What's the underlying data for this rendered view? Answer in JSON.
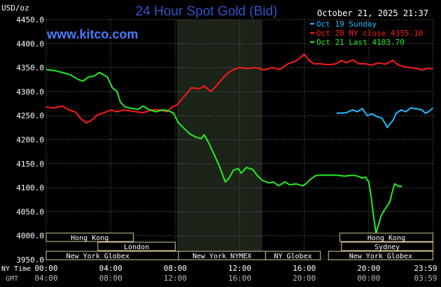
{
  "header": {
    "title": "24 Hour Spot Gold (Bid)",
    "timestamp": "October 21, 2025 21:37",
    "unit_label": "USD/oz",
    "watermark": "www.kitco.com"
  },
  "colors": {
    "background": "#000000",
    "title": "#2f55c7",
    "watermark": "#4a7cff",
    "axis_text": "#ffffff",
    "gridline": "#6a6a6a",
    "shaded_band": "#1c2318",
    "series_oct19": "#22bbff",
    "series_oct20": "#ff1a1a",
    "series_oct21": "#22ee22",
    "session_border": "#d8c79a"
  },
  "sessions": [
    {
      "label": "Hong Kong",
      "row": 1
    },
    {
      "label": "London",
      "row": 2
    },
    {
      "label": "New York Globex",
      "row": 3
    },
    {
      "label": "New York NYMEX",
      "row": 3
    },
    {
      "label": "NY Globex",
      "row": 3
    },
    {
      "label": "Hong Kong",
      "row": 1
    },
    {
      "label": "Sydney",
      "row": 2
    },
    {
      "label": "New York Globex",
      "row": 3
    }
  ],
  "footer": {
    "ny_time_label": "NY Time",
    "gmt_label": "GMT",
    "ny_ticks": [
      "00:00",
      "04:00",
      "08:00",
      "12:00",
      "16:00",
      "20:00",
      "23:59"
    ],
    "gmt_ticks": [
      "04:00",
      "08:00",
      "12:00",
      "16:00",
      "20:00",
      "00:00",
      "03:59"
    ]
  },
  "chart_data": {
    "type": "line",
    "title": "24 Hour Spot Gold (Bid)",
    "ylabel": "USD/oz",
    "xlabel": "NY Time",
    "xlim": [
      0,
      24
    ],
    "ylim": [
      3950,
      4450
    ],
    "y_ticks": [
      "4450.0",
      "4400.0",
      "4350.0",
      "4300.0",
      "4250.0",
      "4200.0",
      "4150.0",
      "4100.0",
      "4050.0",
      "4000.0",
      "3950.0"
    ],
    "grid": true,
    "legend_position": "top-right",
    "shaded_region_hours": [
      8.1,
      13.4
    ],
    "series": [
      {
        "name": "Oct 19 Sunday",
        "legend": "Oct 19 Sunday",
        "points": [
          [
            18.0,
            4255
          ],
          [
            18.6,
            4256
          ],
          [
            19.0,
            4262
          ],
          [
            19.3,
            4258
          ],
          [
            19.6,
            4265
          ],
          [
            19.9,
            4250
          ],
          [
            20.2,
            4254
          ],
          [
            20.5,
            4248
          ],
          [
            20.8,
            4245
          ],
          [
            21.0,
            4235
          ],
          [
            21.15,
            4225
          ],
          [
            21.3,
            4232
          ],
          [
            21.5,
            4240
          ],
          [
            21.7,
            4255
          ],
          [
            22.0,
            4262
          ],
          [
            22.3,
            4258
          ],
          [
            22.6,
            4266
          ],
          [
            23.0,
            4264
          ],
          [
            23.3,
            4262
          ],
          [
            23.5,
            4255
          ],
          [
            23.7,
            4258
          ],
          [
            23.98,
            4266
          ]
        ]
      },
      {
        "name": "Oct 20 NY close 4355.10",
        "legend": "Oct 20 NY close 4355.10",
        "points": [
          [
            0.0,
            4268
          ],
          [
            0.5,
            4266
          ],
          [
            1.0,
            4270
          ],
          [
            1.4,
            4262
          ],
          [
            1.8,
            4258
          ],
          [
            2.2,
            4242
          ],
          [
            2.5,
            4235
          ],
          [
            2.8,
            4240
          ],
          [
            3.2,
            4252
          ],
          [
            3.6,
            4256
          ],
          [
            4.0,
            4262
          ],
          [
            4.4,
            4258
          ],
          [
            4.8,
            4262
          ],
          [
            5.2,
            4260
          ],
          [
            5.6,
            4258
          ],
          [
            6.0,
            4256
          ],
          [
            6.5,
            4262
          ],
          [
            7.0,
            4262
          ],
          [
            7.5,
            4258
          ],
          [
            7.8,
            4268
          ],
          [
            8.1,
            4272
          ],
          [
            8.5,
            4288
          ],
          [
            9.0,
            4308
          ],
          [
            9.5,
            4306
          ],
          [
            9.8,
            4312
          ],
          [
            10.2,
            4300
          ],
          [
            10.5,
            4310
          ],
          [
            10.8,
            4322
          ],
          [
            11.0,
            4330
          ],
          [
            11.3,
            4340
          ],
          [
            11.6,
            4346
          ],
          [
            12.0,
            4350
          ],
          [
            12.5,
            4348
          ],
          [
            13.0,
            4350
          ],
          [
            13.5,
            4345
          ],
          [
            14.0,
            4350
          ],
          [
            14.5,
            4346
          ],
          [
            15.0,
            4358
          ],
          [
            15.5,
            4364
          ],
          [
            15.8,
            4372
          ],
          [
            16.0,
            4378
          ],
          [
            16.3,
            4365
          ],
          [
            16.6,
            4358
          ],
          [
            17.0,
            4358
          ],
          [
            17.5,
            4356
          ],
          [
            18.0,
            4358
          ],
          [
            18.3,
            4365
          ],
          [
            18.6,
            4360
          ],
          [
            19.0,
            4366
          ],
          [
            19.4,
            4358
          ],
          [
            19.8,
            4358
          ],
          [
            20.2,
            4355
          ],
          [
            20.6,
            4360
          ],
          [
            21.0,
            4357
          ],
          [
            21.5,
            4365
          ],
          [
            21.8,
            4356
          ],
          [
            22.2,
            4352
          ],
          [
            22.6,
            4350
          ],
          [
            23.0,
            4348
          ],
          [
            23.3,
            4345
          ],
          [
            23.6,
            4348
          ],
          [
            23.98,
            4348
          ]
        ]
      },
      {
        "name": "Oct 21 Last 4103.70",
        "legend": "Oct 21 Last 4103.70",
        "points": [
          [
            0.0,
            4346
          ],
          [
            0.5,
            4344
          ],
          [
            1.0,
            4340
          ],
          [
            1.5,
            4335
          ],
          [
            2.0,
            4325
          ],
          [
            2.3,
            4322
          ],
          [
            2.6,
            4330
          ],
          [
            3.0,
            4333
          ],
          [
            3.3,
            4340
          ],
          [
            3.5,
            4336
          ],
          [
            3.8,
            4330
          ],
          [
            4.1,
            4308
          ],
          [
            4.4,
            4300
          ],
          [
            4.6,
            4278
          ],
          [
            4.9,
            4268
          ],
          [
            5.3,
            4265
          ],
          [
            5.7,
            4263
          ],
          [
            6.0,
            4270
          ],
          [
            6.4,
            4262
          ],
          [
            6.8,
            4258
          ],
          [
            7.2,
            4262
          ],
          [
            7.6,
            4260
          ],
          [
            7.9,
            4255
          ],
          [
            8.2,
            4235
          ],
          [
            8.5,
            4225
          ],
          [
            8.8,
            4215
          ],
          [
            9.0,
            4210
          ],
          [
            9.3,
            4205
          ],
          [
            9.6,
            4202
          ],
          [
            9.8,
            4210
          ],
          [
            10.1,
            4192
          ],
          [
            10.4,
            4170
          ],
          [
            10.7,
            4148
          ],
          [
            10.9,
            4130
          ],
          [
            11.1,
            4112
          ],
          [
            11.3,
            4118
          ],
          [
            11.6,
            4136
          ],
          [
            11.9,
            4140
          ],
          [
            12.1,
            4130
          ],
          [
            12.4,
            4142
          ],
          [
            12.8,
            4138
          ],
          [
            13.1,
            4125
          ],
          [
            13.4,
            4115
          ],
          [
            13.8,
            4110
          ],
          [
            14.1,
            4112
          ],
          [
            14.4,
            4104
          ],
          [
            14.8,
            4112
          ],
          [
            15.1,
            4106
          ],
          [
            15.5,
            4108
          ],
          [
            15.9,
            4104
          ],
          [
            16.1,
            4108
          ],
          [
            16.4,
            4118
          ],
          [
            16.7,
            4125
          ],
          [
            17.0,
            4126
          ],
          [
            17.5,
            4126
          ],
          [
            18.0,
            4126
          ],
          [
            18.5,
            4124
          ],
          [
            19.0,
            4126
          ],
          [
            19.3,
            4124
          ],
          [
            19.6,
            4120
          ],
          [
            19.8,
            4122
          ],
          [
            20.0,
            4112
          ],
          [
            20.15,
            4080
          ],
          [
            20.3,
            4040
          ],
          [
            20.45,
            4005
          ],
          [
            20.6,
            4022
          ],
          [
            20.75,
            4040
          ],
          [
            20.9,
            4050
          ],
          [
            21.1,
            4060
          ],
          [
            21.3,
            4070
          ],
          [
            21.45,
            4090
          ],
          [
            21.6,
            4108
          ],
          [
            21.8,
            4104
          ],
          [
            21.95,
            4102
          ],
          [
            22.05,
            4104
          ]
        ]
      }
    ]
  }
}
